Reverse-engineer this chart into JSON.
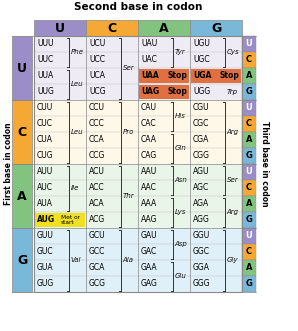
{
  "title": "Second base in codon",
  "ylabel_left": "First base in codon",
  "ylabel_right": "Third base in codon",
  "second_bases": [
    "U",
    "C",
    "A",
    "G"
  ],
  "first_bases": [
    "U",
    "C",
    "A",
    "G"
  ],
  "third_bases": [
    "U",
    "C",
    "A",
    "G"
  ],
  "header_colors": {
    "U": "#9b8ec8",
    "C": "#f5a833",
    "A": "#82c47f",
    "G": "#7ab8d9"
  },
  "row_bg_colors": {
    "U": "#eeebf5",
    "C": "#fef8e8",
    "A": "#e8f5e8",
    "G": "#e0f0f8"
  },
  "third_base_colors": {
    "U": "#9b8ec8",
    "C": "#f5a833",
    "A": "#82c47f",
    "G": "#7ab8d9"
  },
  "stop_color": "#e07040",
  "met_color": "#f0e020",
  "codons": {
    "UU": [
      "UUU",
      "UUC",
      "UUA",
      "UUG"
    ],
    "UC": [
      "UCU",
      "UCC",
      "UCA",
      "UCG"
    ],
    "UA": [
      "UAU",
      "UAC",
      "UAA",
      "UAG"
    ],
    "UG": [
      "UGU",
      "UGC",
      "UGA",
      "UGG"
    ],
    "CU": [
      "CUU",
      "CUC",
      "CUA",
      "CUG"
    ],
    "CC": [
      "CCU",
      "CCC",
      "CCA",
      "CCG"
    ],
    "CA": [
      "CAU",
      "CAC",
      "CAA",
      "CAG"
    ],
    "CG": [
      "CGU",
      "CGC",
      "CGA",
      "CGG"
    ],
    "AU": [
      "AUU",
      "AUC",
      "AUA",
      "AUG"
    ],
    "AC": [
      "ACU",
      "ACC",
      "ACA",
      "ACG"
    ],
    "AA": [
      "AAU",
      "AAC",
      "AAA",
      "AAG"
    ],
    "AG": [
      "AGU",
      "AGC",
      "AGA",
      "AGG"
    ],
    "GU": [
      "GUU",
      "GUC",
      "GUA",
      "GUG"
    ],
    "GC": [
      "GCU",
      "GCC",
      "GCA",
      "GCG"
    ],
    "GA": [
      "GAU",
      "GAC",
      "GAA",
      "GAG"
    ],
    "GG": [
      "GGU",
      "GGC",
      "GGA",
      "GGG"
    ]
  },
  "amino_acids": {
    "UUU": "Phe",
    "UUC": "Phe",
    "UUA": "Leu",
    "UUG": "Leu",
    "UCU": "Ser",
    "UCC": "Ser",
    "UCA": "Ser",
    "UCG": "Ser",
    "UAU": "Tyr",
    "UAC": "Tyr",
    "UAA": "Stop",
    "UAG": "Stop",
    "UGU": "Cys",
    "UGC": "Cys",
    "UGA": "Stop",
    "UGG": "Trp",
    "CUU": "Leu",
    "CUC": "Leu",
    "CUA": "Leu",
    "CUG": "Leu",
    "CCU": "Pro",
    "CCC": "Pro",
    "CCA": "Pro",
    "CCG": "Pro",
    "CAU": "His",
    "CAC": "His",
    "CAA": "Gln",
    "CAG": "Gln",
    "CGU": "Arg",
    "CGC": "Arg",
    "CGA": "Arg",
    "CGG": "Arg",
    "AUU": "Ile",
    "AUC": "Ile",
    "AUA": "Ile",
    "AUG": "Met or start",
    "ACU": "Thr",
    "ACC": "Thr",
    "ACA": "Thr",
    "ACG": "Thr",
    "AAU": "Asn",
    "AAC": "Asn",
    "AAA": "Lys",
    "AAG": "Lys",
    "AGU": "Ser",
    "AGC": "Ser",
    "AGA": "Arg",
    "AGG": "Arg",
    "GUU": "Val",
    "GUC": "Val",
    "GUA": "Val",
    "GUG": "Val",
    "GCU": "Ala",
    "GCC": "Ala",
    "GCA": "Ala",
    "GCG": "Ala",
    "GAU": "Asp",
    "GAC": "Asp",
    "GAA": "Glu",
    "GAG": "Glu",
    "GGU": "Gly",
    "GGC": "Gly",
    "GGA": "Gly",
    "GGG": "Gly"
  },
  "groups": [
    {
      "ri": 0,
      "ci": 0,
      "s0": 0,
      "s1": 1,
      "label": "Phe"
    },
    {
      "ri": 0,
      "ci": 0,
      "s0": 2,
      "s1": 3,
      "label": "Leu"
    },
    {
      "ri": 0,
      "ci": 1,
      "s0": 0,
      "s1": 3,
      "label": "Ser"
    },
    {
      "ri": 0,
      "ci": 2,
      "s0": 0,
      "s1": 1,
      "label": "Tyr"
    },
    {
      "ri": 0,
      "ci": 3,
      "s0": 0,
      "s1": 1,
      "label": "Cys"
    },
    {
      "ri": 0,
      "ci": 3,
      "s0": 3,
      "s1": 3,
      "label": "Trp"
    },
    {
      "ri": 1,
      "ci": 0,
      "s0": 0,
      "s1": 3,
      "label": "Leu"
    },
    {
      "ri": 1,
      "ci": 1,
      "s0": 0,
      "s1": 3,
      "label": "Pro"
    },
    {
      "ri": 1,
      "ci": 2,
      "s0": 0,
      "s1": 1,
      "label": "His"
    },
    {
      "ri": 1,
      "ci": 2,
      "s0": 2,
      "s1": 3,
      "label": "Gln"
    },
    {
      "ri": 1,
      "ci": 3,
      "s0": 0,
      "s1": 3,
      "label": "Arg"
    },
    {
      "ri": 2,
      "ci": 0,
      "s0": 0,
      "s1": 2,
      "label": "Ile"
    },
    {
      "ri": 2,
      "ci": 1,
      "s0": 0,
      "s1": 3,
      "label": "Thr"
    },
    {
      "ri": 2,
      "ci": 2,
      "s0": 0,
      "s1": 1,
      "label": "Asn"
    },
    {
      "ri": 2,
      "ci": 2,
      "s0": 2,
      "s1": 3,
      "label": "Lys"
    },
    {
      "ri": 2,
      "ci": 3,
      "s0": 0,
      "s1": 1,
      "label": "Ser"
    },
    {
      "ri": 2,
      "ci": 3,
      "s0": 2,
      "s1": 3,
      "label": "Arg"
    },
    {
      "ri": 3,
      "ci": 0,
      "s0": 0,
      "s1": 3,
      "label": "Val"
    },
    {
      "ri": 3,
      "ci": 1,
      "s0": 0,
      "s1": 3,
      "label": "Ala"
    },
    {
      "ri": 3,
      "ci": 2,
      "s0": 0,
      "s1": 1,
      "label": "Asp"
    },
    {
      "ri": 3,
      "ci": 2,
      "s0": 2,
      "s1": 3,
      "label": "Glu"
    },
    {
      "ri": 3,
      "ci": 3,
      "s0": 0,
      "s1": 3,
      "label": "Gly"
    }
  ]
}
